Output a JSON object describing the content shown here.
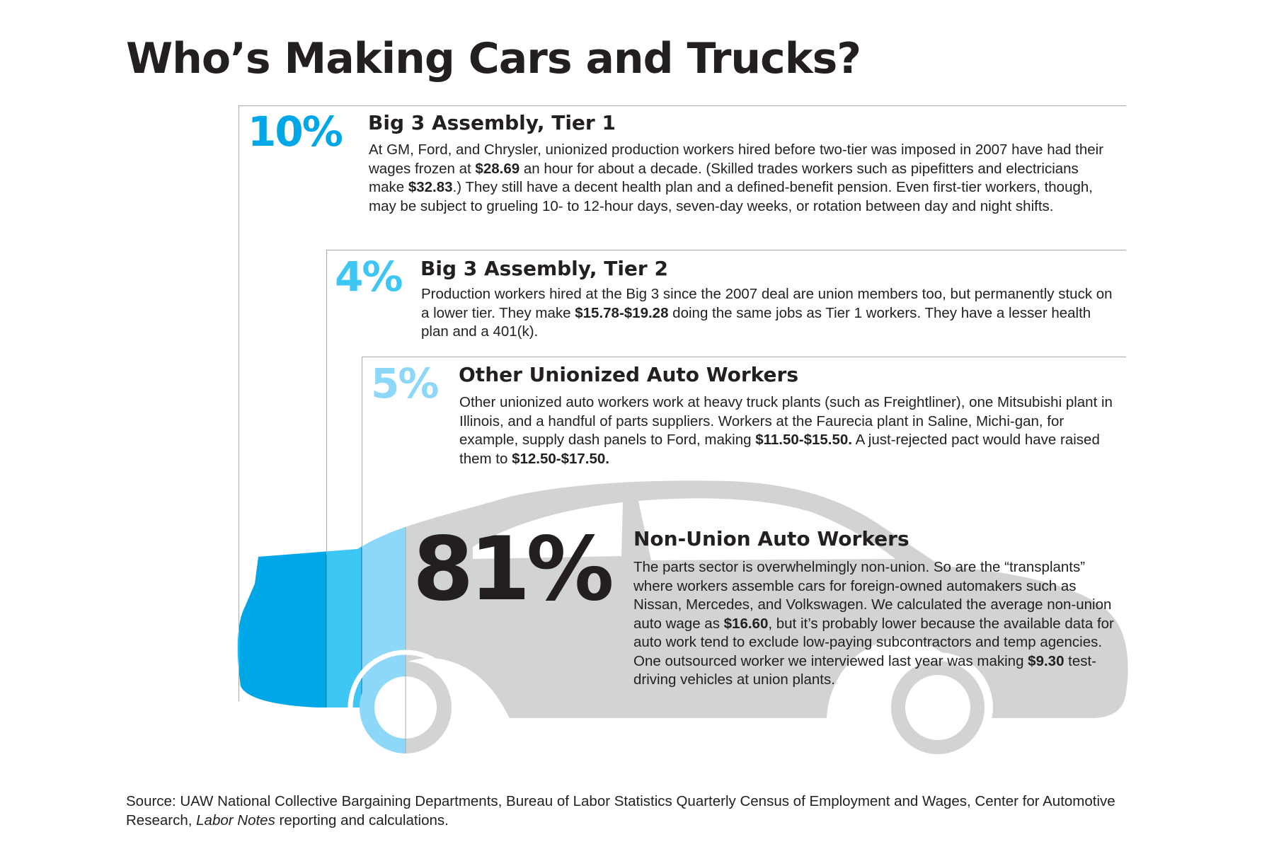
{
  "title": "Who’s Making Cars and Trucks?",
  "colors": {
    "tier1": "#00a7e6",
    "tier2": "#3ec7f4",
    "other_union": "#8dd8f8",
    "non_union": "#d1d3d4",
    "text": "#231f20"
  },
  "segments": [
    {
      "id": "tier1",
      "percent": "10%",
      "share": 10,
      "heading": "Big 3 Assembly, Tier 1",
      "body": [
        {
          "t": "At GM, Ford, and Chrysler, unionized production workers hired before two-tier was imposed in 2007 have had their wages frozen at "
        },
        {
          "t": "$28.69",
          "b": true
        },
        {
          "t": " an hour for about a decade. (Skilled trades workers such as pipefitters and electricians make "
        },
        {
          "t": "$32.83",
          "b": true
        },
        {
          "t": ".) They still have a decent health plan and a defined-benefit pension. Even first-tier workers, though, may be subject to grueling 10- to 12-hour days, seven-day weeks, or rotation between day and night shifts."
        }
      ]
    },
    {
      "id": "tier2",
      "percent": "4%",
      "share": 4,
      "heading": "Big 3 Assembly, Tier 2",
      "body": [
        {
          "t": "Production workers hired at the Big 3 since the 2007 deal are union members too, but permanently stuck on a lower tier. They make "
        },
        {
          "t": "$15.78-$19.28",
          "b": true
        },
        {
          "t": " doing the same jobs as Tier 1 workers. They have a lesser health plan and a 401(k)."
        }
      ]
    },
    {
      "id": "other_union",
      "percent": "5%",
      "share": 5,
      "heading": "Other Unionized Auto Workers",
      "body": [
        {
          "t": "Other unionized auto workers work at heavy truck plants (such as Freightliner), one Mitsubishi plant in Illinois, and a handful of parts suppliers. Workers at the Faurecia plant in Saline, Michi-gan, for example, supply dash panels to Ford, making "
        },
        {
          "t": "$11.50-$15.50.",
          "b": true
        },
        {
          "t": " A just-rejected pact would have raised them to "
        },
        {
          "t": "$12.50-$17.50.",
          "b": true
        }
      ]
    },
    {
      "id": "non_union",
      "percent": "81%",
      "share": 81,
      "heading": "Non-Union Auto Workers",
      "body": [
        {
          "t": "The parts sector is overwhelmingly non-union. So are the “transplants” where workers assemble cars for foreign-owned automakers such as Nissan, Mercedes, and Volkswagen. We calculated the average non-union auto wage as "
        },
        {
          "t": "$16.60",
          "b": true
        },
        {
          "t": ", but it’s probably lower because the available data for auto work tend to exclude low-paying subcontractors and temp agencies. One outsourced worker we interviewed last year was making "
        },
        {
          "t": "$9.30",
          "b": true
        },
        {
          "t": " test-driving vehicles at union plants."
        }
      ]
    }
  ],
  "source": [
    {
      "t": "Source: UAW National Collective Bargaining Departments, Bureau of Labor Statistics Quarterly Census of Employment and Wages, Center for Automotive Research, "
    },
    {
      "t": "Labor Notes",
      "i": true
    },
    {
      "t": " reporting and calculations."
    }
  ]
}
